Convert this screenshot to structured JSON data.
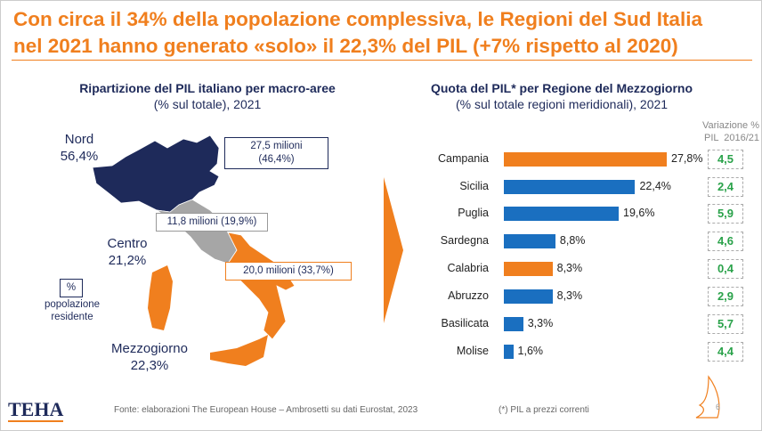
{
  "title": {
    "line1": "Con circa il 34% della popolazione complessiva, le Regioni del Sud Italia",
    "line2": "nel 2021 hanno generato «solo» il 22,3% del PIL (+7% rispetto al 2020)"
  },
  "left": {
    "heading": "Ripartizione del PIL italiano per macro-aree",
    "subheading": "(% sul totale), 2021",
    "areas": [
      {
        "name": "Nord",
        "pct": "56,4%",
        "box": "27,5 milioni",
        "box2": "(46,4%)"
      },
      {
        "name": "Centro",
        "pct": "21,2%",
        "box": "11,8 milioni (19,9%)"
      },
      {
        "name": "Mezzogiorno",
        "pct": "22,3%",
        "box": "20,0 milioni (33,7%)"
      }
    ],
    "legend_symbol": "%",
    "legend_text1": "popolazione",
    "legend_text2": "residente"
  },
  "colors": {
    "orange": "#f07f1e",
    "blue": "#1a6fc0",
    "navy": "#1e2a5a",
    "grey": "#a6a6a6",
    "green": "#2aa24a"
  },
  "chart_data": {
    "type": "bar",
    "orientation": "horizontal",
    "title": "Quota del PIL* per Regione del Mezzogiorno",
    "subtitle": "(% sul totale regioni meridionali), 2021",
    "categories": [
      "Campania",
      "Sicilia",
      "Puglia",
      "Sardegna",
      "Calabria",
      "Abruzzo",
      "Basilicata",
      "Molise"
    ],
    "values": [
      27.8,
      22.4,
      19.6,
      8.8,
      8.3,
      8.3,
      3.3,
      1.6
    ],
    "labels": [
      "27,8%",
      "22,4%",
      "19,6%",
      "8,8%",
      "8,3%",
      "8,3%",
      "3,3%",
      "1,6%"
    ],
    "highlighted": [
      true,
      false,
      false,
      false,
      true,
      false,
      false,
      false
    ],
    "variation_header1": "Variazione %",
    "variation_header2": "PIL  2016/21",
    "variation": [
      "4,5",
      "2,4",
      "5,9",
      "4,6",
      "0,4",
      "2,9",
      "5,7",
      "4,4"
    ]
  },
  "footer": {
    "logo": "TEHA",
    "source": "Fonte: elaborazioni The European House – Ambrosetti su dati Eurostat, 2023",
    "note": "(*) PIL a prezzi correnti",
    "page": "6"
  }
}
